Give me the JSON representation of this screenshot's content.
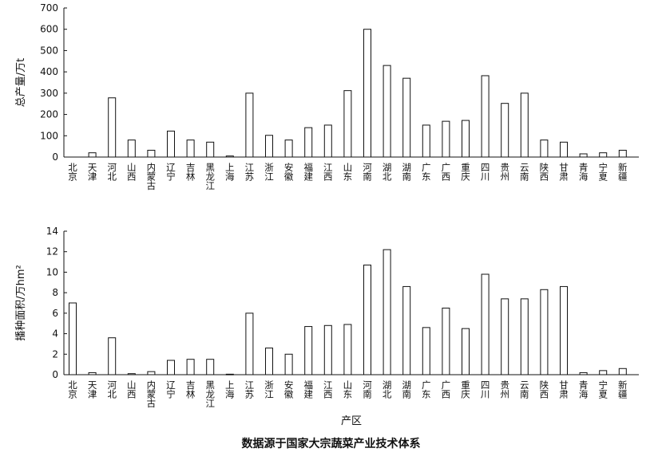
{
  "caption": "数据源于国家大宗蔬菜产业技术体系",
  "chart_data": [
    {
      "type": "bar",
      "title": "",
      "xlabel": "",
      "ylabel": "总产量/万t",
      "ylim": [
        0,
        700
      ],
      "yticks": [
        0,
        100,
        200,
        300,
        400,
        500,
        600,
        700
      ],
      "categories": [
        "北京",
        "天津",
        "河北",
        "山西",
        "内蒙古",
        "辽宁",
        "吉林",
        "黑龙江",
        "上海",
        "江苏",
        "浙江",
        "安徽",
        "福建",
        "江西",
        "山东",
        "河南",
        "湖北",
        "湖南",
        "广东",
        "广西",
        "重庆",
        "四川",
        "贵州",
        "云南",
        "陕西",
        "甘肃",
        "青海",
        "宁夏",
        "新疆"
      ],
      "values": [
        0,
        20,
        278,
        80,
        32,
        122,
        80,
        70,
        5,
        300,
        102,
        80,
        138,
        150,
        312,
        600,
        430,
        370,
        150,
        168,
        172,
        382,
        252,
        300,
        80,
        70,
        15,
        20,
        32
      ]
    },
    {
      "type": "bar",
      "title": "",
      "xlabel": "产区",
      "ylabel": "播种面积/万hm²",
      "ylim": [
        0,
        14
      ],
      "yticks": [
        0,
        2,
        4,
        6,
        8,
        10,
        12,
        14
      ],
      "categories": [
        "北京",
        "天津",
        "河北",
        "山西",
        "内蒙古",
        "辽宁",
        "吉林",
        "黑龙江",
        "上海",
        "江苏",
        "浙江",
        "安徽",
        "福建",
        "江西",
        "山东",
        "河南",
        "湖北",
        "湖南",
        "广东",
        "广西",
        "重庆",
        "四川",
        "贵州",
        "云南",
        "陕西",
        "甘肃",
        "青海",
        "宁夏",
        "新疆"
      ],
      "values": [
        7.0,
        0.2,
        3.6,
        0.1,
        0.3,
        1.4,
        1.5,
        1.5,
        0.05,
        6.0,
        2.6,
        2.0,
        4.7,
        4.8,
        4.9,
        10.7,
        12.2,
        8.6,
        4.6,
        6.5,
        4.5,
        9.8,
        7.4,
        7.4,
        8.3,
        8.6,
        0.2,
        0.4,
        0.6
      ]
    }
  ]
}
